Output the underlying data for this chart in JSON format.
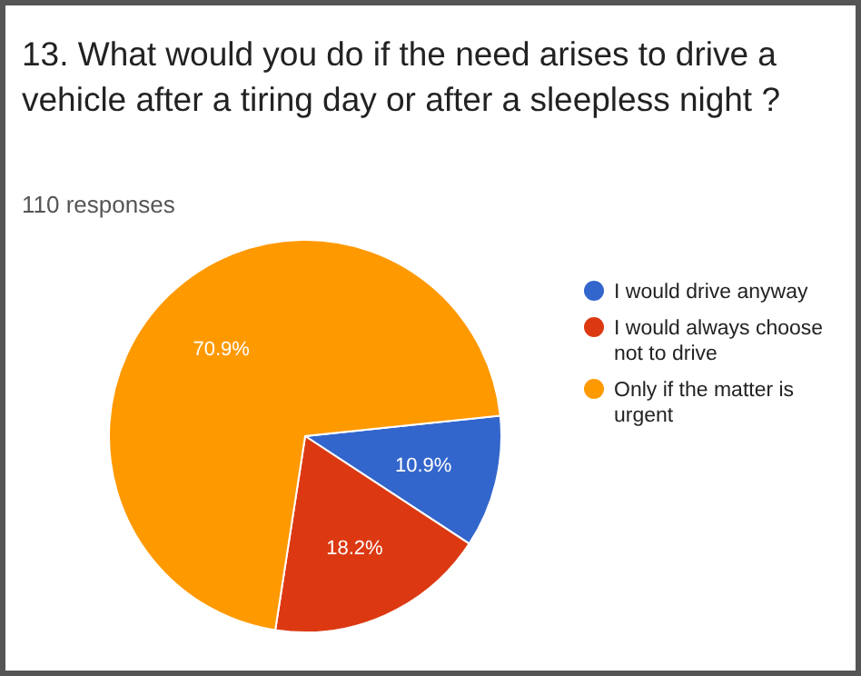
{
  "chart_data": {
    "type": "pie",
    "title": "13. What would you do if the need arises to drive a vehicle after a tiring day or after a sleepless night ?",
    "subtitle": "110 responses",
    "categories": [
      "I would drive anyway",
      "I would always choose not to drive",
      "Only if the matter is urgent"
    ],
    "values": [
      10.9,
      18.2,
      70.9
    ],
    "value_labels": [
      "10.9%",
      "18.2%",
      "70.9%"
    ],
    "colors": [
      "#3366cc",
      "#dc3912",
      "#ff9900"
    ],
    "legend": "right"
  }
}
